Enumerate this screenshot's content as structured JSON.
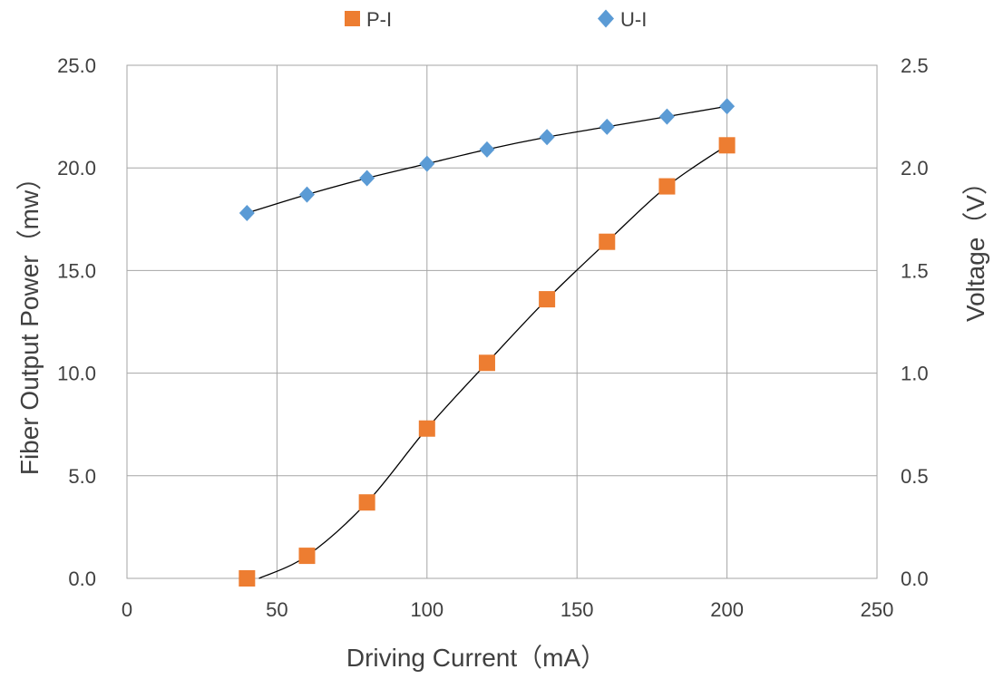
{
  "chart_data": {
    "type": "scatter",
    "xlabel": "Driving Current（mA）",
    "ylabel": "Fiber Output Power（mw）",
    "y2label": "Voltage（V）",
    "xlim": [
      0,
      250
    ],
    "ylim": [
      0,
      25
    ],
    "y2lim": [
      0,
      2.5
    ],
    "x_ticks": [
      "0",
      "50",
      "100",
      "150",
      "200",
      "250"
    ],
    "y_ticks": [
      "0.0",
      "5.0",
      "10.0",
      "15.0",
      "20.0",
      "25.0"
    ],
    "y2_ticks": [
      "0.0",
      "0.5",
      "1.0",
      "1.5",
      "2.0",
      "2.5"
    ],
    "grid": true,
    "legend_position": "top-center",
    "series": [
      {
        "name": "P-I",
        "axis": "left",
        "marker": "square",
        "color": "#ED7D31",
        "x": [
          40,
          60,
          80,
          100,
          120,
          140,
          160,
          180,
          200
        ],
        "y": [
          0.0,
          1.1,
          3.7,
          7.3,
          10.5,
          13.6,
          16.4,
          19.1,
          21.1
        ]
      },
      {
        "name": "U-I",
        "axis": "right",
        "marker": "diamond",
        "color": "#5B9BD5",
        "x": [
          40,
          60,
          80,
          100,
          120,
          140,
          160,
          180,
          200
        ],
        "y": [
          1.78,
          1.87,
          1.95,
          2.02,
          2.09,
          2.15,
          2.2,
          2.25,
          2.3
        ]
      }
    ]
  }
}
